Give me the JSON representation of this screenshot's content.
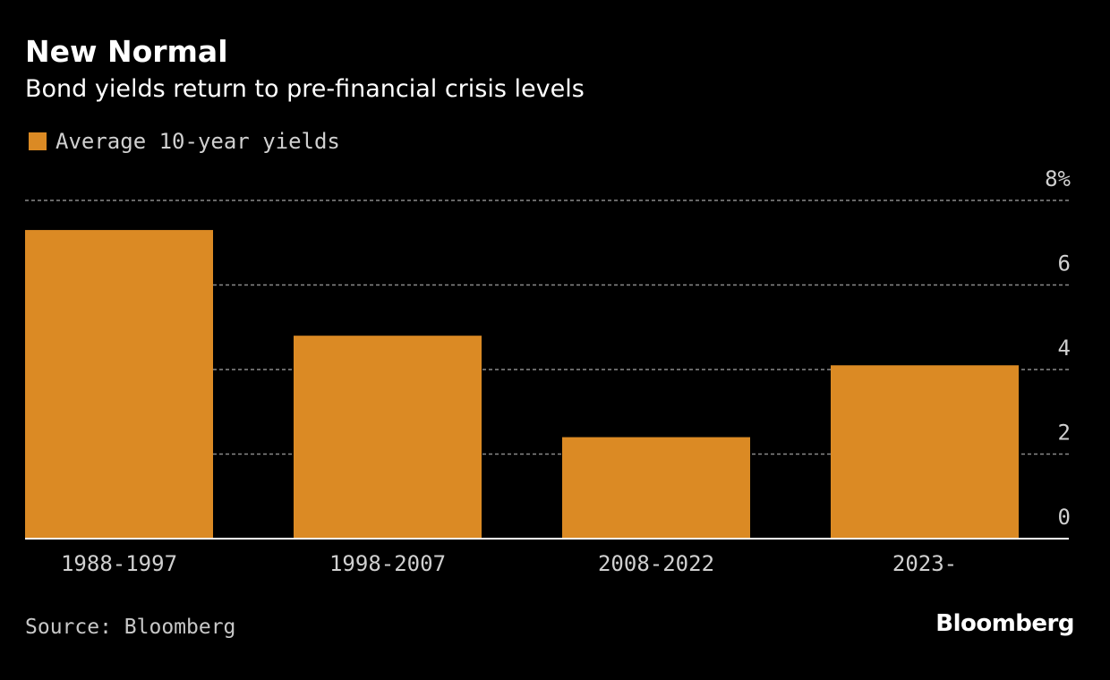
{
  "header": {
    "title": "New Normal",
    "subtitle": "Bond yields return to pre-financial crisis levels"
  },
  "legend": {
    "label": "Average 10-year yields"
  },
  "footer": {
    "source": "Source: Bloomberg",
    "logo": "Bloomberg"
  },
  "colors": {
    "background": "#000000",
    "bar": "#DB8A24",
    "grid": "#8a8a8a",
    "axis_text": "#d0d0d0"
  },
  "chart_data": {
    "type": "bar",
    "title": "New Normal",
    "subtitle": "Bond yields return to pre-financial crisis levels",
    "categories": [
      "1988-1997",
      "1998-2007",
      "2008-2022",
      "2023-"
    ],
    "series": [
      {
        "name": "Average 10-year yields",
        "values": [
          7.3,
          4.8,
          2.4,
          4.1
        ]
      }
    ],
    "ylim": [
      0,
      8
    ],
    "yticks": [
      0,
      2,
      4,
      6,
      8
    ],
    "ytick_labels": [
      "0",
      "2",
      "4",
      "6",
      "8%"
    ],
    "y_axis_side": "right",
    "grid": true,
    "legend_position": "top-left"
  }
}
